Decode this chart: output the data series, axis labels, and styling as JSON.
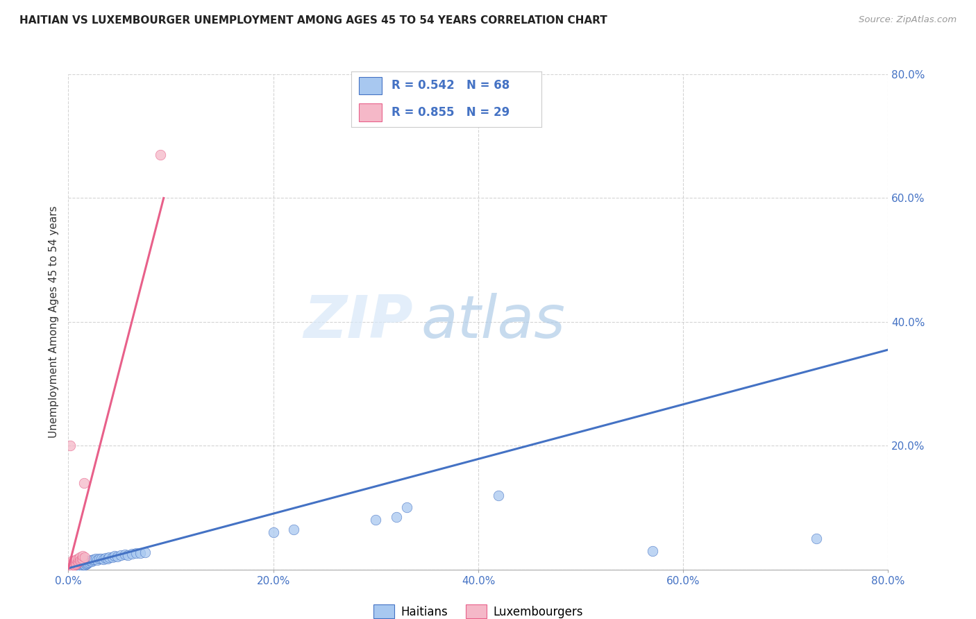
{
  "title": "HAITIAN VS LUXEMBOURGER UNEMPLOYMENT AMONG AGES 45 TO 54 YEARS CORRELATION CHART",
  "source": "Source: ZipAtlas.com",
  "ylabel": "Unemployment Among Ages 45 to 54 years",
  "xlim": [
    0.0,
    0.8
  ],
  "ylim": [
    0.0,
    0.8
  ],
  "xticks": [
    0.0,
    0.2,
    0.4,
    0.6,
    0.8
  ],
  "yticks": [
    0.0,
    0.2,
    0.4,
    0.6,
    0.8
  ],
  "xtick_labels": [
    "0.0%",
    "20.0%",
    "40.0%",
    "60.0%",
    "80.0%"
  ],
  "ytick_labels": [
    "",
    "20.0%",
    "40.0%",
    "60.0%",
    "80.0%"
  ],
  "blue_R": 0.542,
  "blue_N": 68,
  "pink_R": 0.855,
  "pink_N": 29,
  "blue_color": "#A8C8F0",
  "pink_color": "#F5B8C8",
  "blue_line_color": "#4472C4",
  "pink_line_color": "#E8608A",
  "background_color": "#FFFFFF",
  "grid_color": "#D0D0D0",
  "watermark_zip": "ZIP",
  "watermark_atlas": "atlas",
  "legend_label_blue": "Haitians",
  "legend_label_pink": "Luxembourgers",
  "blue_scatter_x": [
    0.001,
    0.002,
    0.003,
    0.003,
    0.004,
    0.004,
    0.005,
    0.005,
    0.006,
    0.006,
    0.007,
    0.007,
    0.007,
    0.008,
    0.008,
    0.009,
    0.009,
    0.01,
    0.01,
    0.01,
    0.011,
    0.011,
    0.012,
    0.012,
    0.013,
    0.013,
    0.014,
    0.014,
    0.015,
    0.015,
    0.016,
    0.016,
    0.017,
    0.018,
    0.018,
    0.019,
    0.02,
    0.021,
    0.022,
    0.023,
    0.024,
    0.025,
    0.027,
    0.028,
    0.03,
    0.032,
    0.034,
    0.036,
    0.038,
    0.04,
    0.043,
    0.045,
    0.048,
    0.051,
    0.055,
    0.058,
    0.062,
    0.066,
    0.07,
    0.075,
    0.2,
    0.22,
    0.3,
    0.32,
    0.33,
    0.42,
    0.57,
    0.73
  ],
  "blue_scatter_y": [
    0.001,
    0.002,
    0.001,
    0.003,
    0.002,
    0.004,
    0.002,
    0.005,
    0.003,
    0.006,
    0.003,
    0.005,
    0.007,
    0.004,
    0.006,
    0.004,
    0.007,
    0.003,
    0.006,
    0.009,
    0.005,
    0.008,
    0.005,
    0.009,
    0.006,
    0.01,
    0.007,
    0.011,
    0.007,
    0.012,
    0.008,
    0.013,
    0.009,
    0.01,
    0.014,
    0.011,
    0.012,
    0.014,
    0.015,
    0.013,
    0.015,
    0.016,
    0.017,
    0.015,
    0.017,
    0.018,
    0.016,
    0.019,
    0.018,
    0.02,
    0.02,
    0.022,
    0.021,
    0.023,
    0.024,
    0.023,
    0.025,
    0.026,
    0.027,
    0.028,
    0.06,
    0.065,
    0.08,
    0.085,
    0.1,
    0.12,
    0.03,
    0.05
  ],
  "pink_scatter_x": [
    0.001,
    0.002,
    0.002,
    0.003,
    0.003,
    0.004,
    0.004,
    0.004,
    0.005,
    0.005,
    0.006,
    0.006,
    0.007,
    0.007,
    0.008,
    0.008,
    0.009,
    0.01,
    0.01,
    0.011,
    0.011,
    0.012,
    0.013,
    0.014,
    0.014,
    0.015,
    0.016,
    0.002,
    0.09
  ],
  "pink_scatter_y": [
    0.01,
    0.005,
    0.008,
    0.005,
    0.01,
    0.006,
    0.01,
    0.014,
    0.007,
    0.012,
    0.008,
    0.013,
    0.009,
    0.015,
    0.01,
    0.016,
    0.012,
    0.013,
    0.018,
    0.014,
    0.02,
    0.015,
    0.016,
    0.018,
    0.022,
    0.14,
    0.02,
    0.2,
    0.67
  ],
  "blue_trend_x": [
    0.0,
    0.8
  ],
  "blue_trend_y": [
    0.002,
    0.355
  ],
  "pink_trend_x": [
    0.0,
    0.093
  ],
  "pink_trend_y": [
    0.002,
    0.6
  ]
}
